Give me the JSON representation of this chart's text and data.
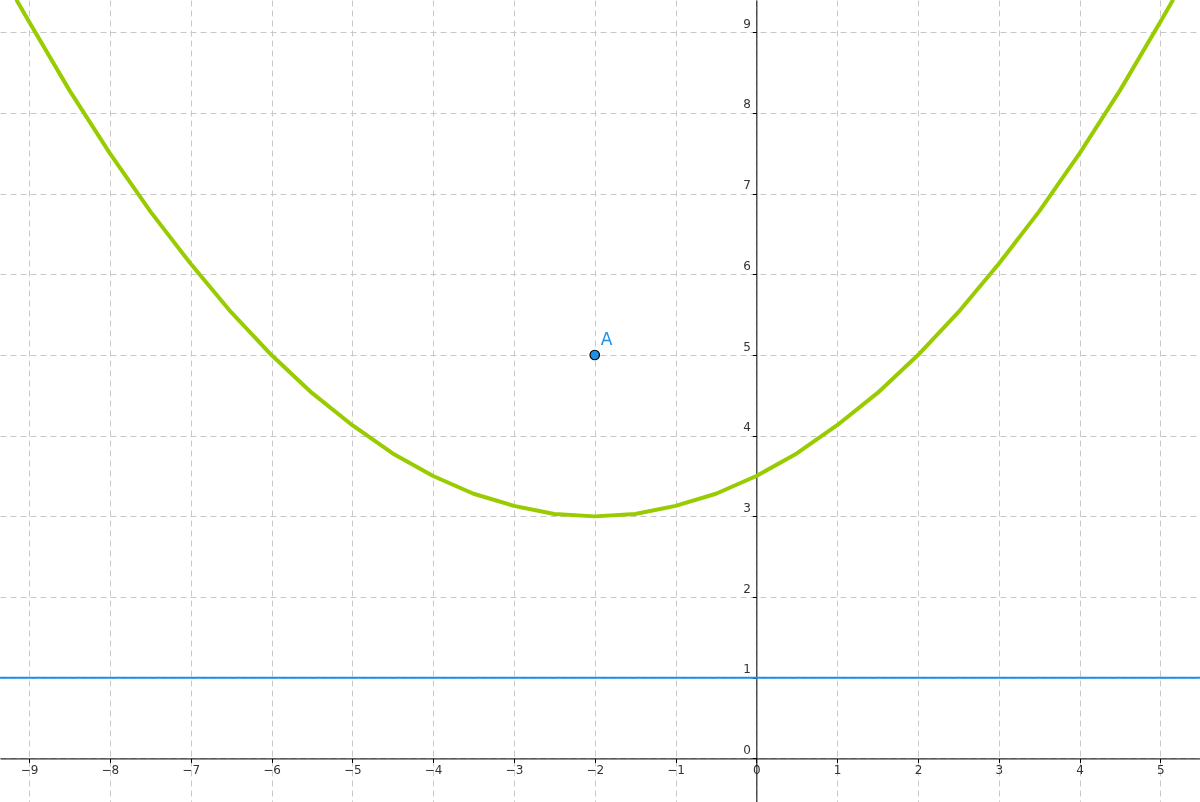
{
  "chart_data": {
    "type": "line",
    "xlim": [
      -9.36,
      5.49
    ],
    "ylim": [
      -0.54,
      9.4
    ],
    "xticks": [
      -9,
      -8,
      -7,
      -6,
      -5,
      -4,
      -3,
      -2,
      -1,
      0,
      1,
      2,
      3,
      4,
      5
    ],
    "yticks": [
      0,
      1,
      2,
      3,
      4,
      5,
      6,
      7,
      8,
      9
    ],
    "grid": true,
    "series": [
      {
        "color": "#99cc00",
        "marker": "none",
        "x": [
          -9.15,
          -9,
          -8.5,
          -8,
          -7.5,
          -7,
          -6.5,
          -6,
          -5.5,
          -5,
          -4.5,
          -4,
          -3.5,
          -3,
          -2.5,
          -2,
          -1.5,
          -1,
          -0.5,
          0,
          0.5,
          1,
          1.5,
          2,
          2.5,
          3,
          3.5,
          4,
          4.5,
          5,
          5.15
        ],
        "values": [
          9.39,
          9.13,
          8.28,
          7.5,
          6.78,
          6.13,
          5.53,
          5,
          4.53,
          4.13,
          3.78,
          3.5,
          3.28,
          3.13,
          3.03,
          3,
          3.03,
          3.13,
          3.28,
          3.5,
          3.78,
          4.13,
          4.53,
          5,
          5.53,
          6.13,
          6.78,
          7.5,
          8.28,
          9.13,
          9.39
        ]
      },
      {
        "type": "scatter",
        "name": "A",
        "color": "#1e90e8",
        "marker": "circle",
        "x": [
          -2
        ],
        "values": [
          5
        ]
      }
    ],
    "ref_lines": [
      {
        "axis": "y",
        "value": 1,
        "color": "#1e90e8"
      }
    ]
  }
}
